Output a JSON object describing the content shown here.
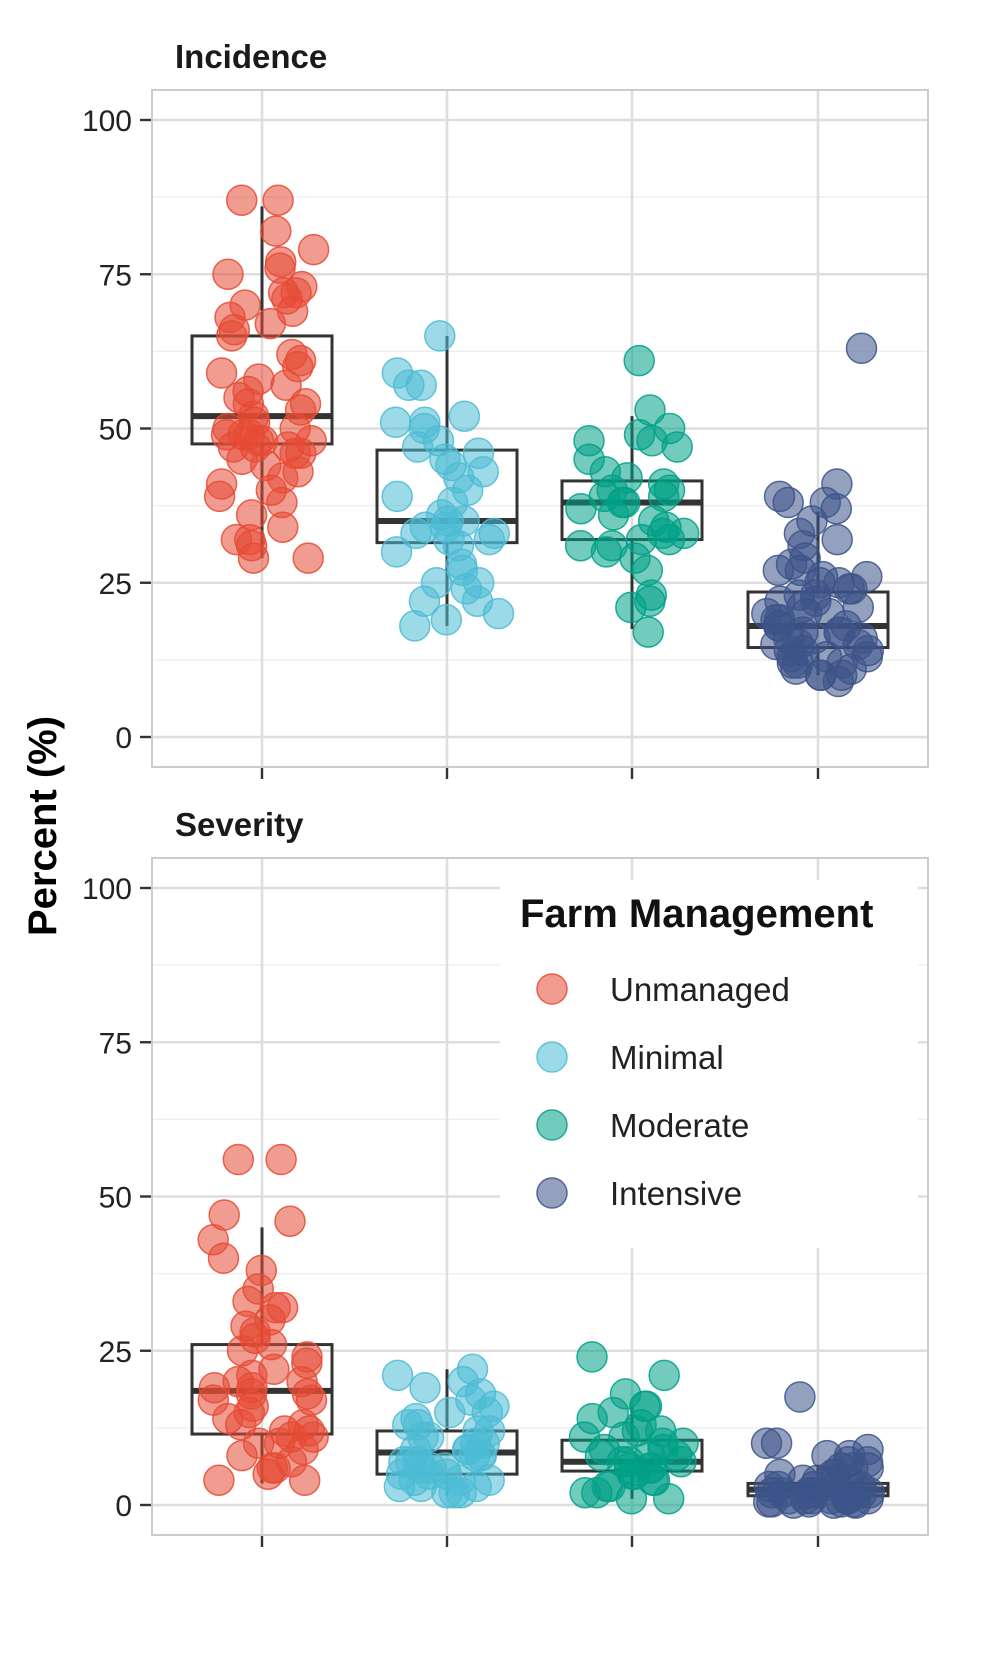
{
  "chart_data": {
    "type": "box_jitter",
    "ylabel": "Percent (%)",
    "ylim": [
      0,
      100
    ],
    "yticks": [
      0,
      25,
      50,
      75,
      100
    ],
    "categories": [
      "Unmanaged",
      "Minimal",
      "Moderate",
      "Intensive"
    ],
    "colors": {
      "Unmanaged": "#E64B35",
      "Minimal": "#4DBBD5",
      "Moderate": "#00A087",
      "Intensive": "#3C5488"
    },
    "legend": {
      "title": "Farm Management",
      "position": "top-right of Severity panel",
      "entries": [
        "Unmanaged",
        "Minimal",
        "Moderate",
        "Intensive"
      ]
    },
    "panels": [
      {
        "title": "Incidence",
        "boxes": [
          {
            "category": "Unmanaged",
            "q1": 47.5,
            "median": 52.0,
            "q3": 65.0,
            "whisker_low": 29.0,
            "whisker_high": 86.0
          },
          {
            "category": "Minimal",
            "q1": 31.5,
            "median": 35.0,
            "q3": 46.5,
            "whisker_low": 18.0,
            "whisker_high": 65.0
          },
          {
            "category": "Moderate",
            "q1": 32.0,
            "median": 38.0,
            "q3": 41.5,
            "whisker_low": 17.5,
            "whisker_high": 52.0
          },
          {
            "category": "Intensive",
            "q1": 14.5,
            "median": 18.0,
            "q3": 23.5,
            "whisker_low": 10.0,
            "whisker_high": 36.5
          }
        ],
        "points": {
          "Unmanaged": [
            87,
            87,
            82,
            79,
            77,
            76,
            75,
            73,
            72,
            72,
            71,
            70,
            69,
            68,
            67,
            66,
            65,
            62,
            61,
            60,
            59,
            58,
            57,
            56,
            55,
            54,
            54,
            53,
            52,
            51,
            50,
            50,
            49,
            49,
            49,
            48,
            48,
            48,
            47,
            47,
            47,
            46,
            46,
            45,
            44,
            43,
            42,
            41,
            40,
            39,
            38,
            36,
            34,
            32,
            32,
            31,
            29,
            29
          ],
          "Minimal": [
            65,
            59,
            57,
            57,
            52,
            51,
            51,
            50,
            48,
            47,
            46,
            45,
            44,
            43,
            42,
            40,
            39,
            38,
            36,
            35,
            35,
            34,
            34,
            33,
            33,
            32,
            32,
            31,
            30,
            28,
            27,
            25,
            25,
            24,
            22,
            22,
            20,
            19,
            18
          ],
          "Moderate": [
            61,
            53,
            50,
            49,
            48,
            48,
            47,
            45,
            43,
            42,
            41,
            40,
            40,
            39,
            39,
            38,
            38,
            37,
            36,
            35,
            34,
            33,
            33,
            32,
            32,
            31,
            31,
            30,
            29,
            27,
            23,
            22,
            21,
            17
          ],
          "Intensive": [
            63,
            41,
            39,
            38,
            38,
            37,
            35,
            33,
            32,
            31,
            29,
            28,
            27,
            27,
            26,
            26,
            25,
            25,
            24,
            24,
            23,
            23,
            22,
            22,
            21,
            21,
            20,
            20,
            20,
            19,
            19,
            18,
            18,
            18,
            17,
            17,
            17,
            16,
            16,
            16,
            15,
            15,
            15,
            14,
            14,
            14,
            13,
            13,
            13,
            12,
            12,
            12,
            11,
            11,
            10,
            10,
            10,
            9
          ]
        }
      },
      {
        "title": "Severity",
        "boxes": [
          {
            "category": "Unmanaged",
            "q1": 11.5,
            "median": 18.5,
            "q3": 26.0,
            "whisker_low": 3.5,
            "whisker_high": 45.0
          },
          {
            "category": "Minimal",
            "q1": 5.0,
            "median": 8.5,
            "q3": 12.0,
            "whisker_low": 1.5,
            "whisker_high": 22.0
          },
          {
            "category": "Moderate",
            "q1": 5.5,
            "median": 7.0,
            "q3": 10.5,
            "whisker_low": 1.0,
            "whisker_high": 16.0
          },
          {
            "category": "Intensive",
            "q1": 1.5,
            "median": 2.5,
            "q3": 3.5,
            "whisker_low": 0.2,
            "whisker_high": 6.5
          }
        ],
        "points": {
          "Unmanaged": [
            56,
            56,
            47,
            46,
            43,
            40,
            38,
            35,
            33,
            32,
            32,
            30,
            29,
            28,
            27,
            26,
            25,
            24,
            23,
            22,
            21,
            20,
            20,
            19,
            19,
            18,
            18,
            17,
            17,
            16,
            15,
            14,
            13,
            13,
            12,
            12,
            11,
            11,
            10,
            10,
            9,
            8,
            7,
            6,
            6,
            5,
            4,
            4
          ],
          "Minimal": [
            22,
            21,
            20,
            19,
            18,
            17,
            16,
            15,
            15,
            14,
            13,
            13,
            12,
            12,
            11,
            11,
            10,
            10,
            9,
            9,
            9,
            8,
            8,
            8,
            7,
            7,
            7,
            6,
            6,
            6,
            5,
            5,
            5,
            4,
            4,
            4,
            3,
            3,
            3,
            2,
            2,
            2
          ],
          "Moderate": [
            24,
            21,
            18,
            16,
            16,
            15,
            14,
            13,
            12,
            12,
            11,
            11,
            10,
            10,
            9,
            9,
            8,
            8,
            8,
            7,
            7,
            7,
            6,
            6,
            6,
            5,
            5,
            4,
            4,
            3,
            3,
            2,
            2,
            1,
            1
          ],
          "Intensive": [
            17.5,
            10,
            10,
            9,
            8,
            8,
            7,
            7,
            6,
            6,
            6,
            5,
            5,
            5,
            4,
            4,
            4,
            4,
            3,
            3,
            3,
            3,
            3,
            2,
            2,
            2,
            2,
            2,
            2,
            1,
            1,
            1,
            1,
            1,
            1,
            1,
            0.5,
            0.5,
            0.5,
            0.5,
            0.5,
            0.3,
            0.3,
            0.3
          ]
        }
      }
    ]
  }
}
